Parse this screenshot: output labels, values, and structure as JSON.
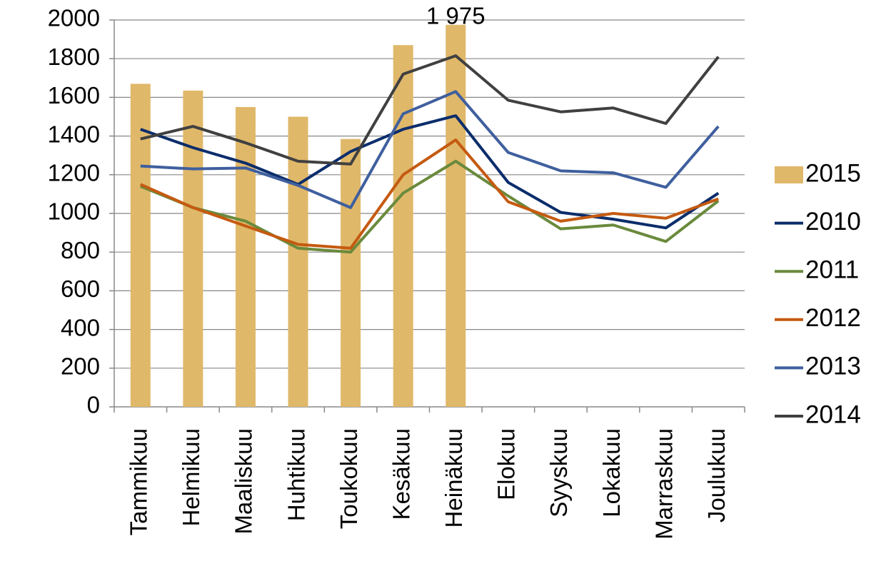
{
  "chart_data": {
    "type": "combo",
    "categories": [
      "Tammikuu",
      "Helmikuu",
      "Maaliskuu",
      "Huhtikuu",
      "Toukokuu",
      "Kesäkuu",
      "Heinäkuu",
      "Elokuu",
      "Syyskuu",
      "Lokakuu",
      "Marraskuu",
      "Joulukuu"
    ],
    "series": [
      {
        "name": "2015",
        "type": "bar",
        "color": "#e0b86a",
        "values": [
          1670,
          1635,
          1550,
          1500,
          1385,
          1870,
          1975,
          null,
          null,
          null,
          null,
          null
        ],
        "value_labels": [
          null,
          null,
          null,
          null,
          null,
          null,
          "1 975",
          null,
          null,
          null,
          null,
          null
        ]
      },
      {
        "name": "2010",
        "type": "line",
        "color": "#0b2d6b",
        "values": [
          1435,
          1340,
          1260,
          1150,
          1320,
          1435,
          1505,
          1160,
          1005,
          970,
          925,
          1105
        ]
      },
      {
        "name": "2011",
        "type": "line",
        "color": "#6a8a3c",
        "values": [
          1140,
          1030,
          960,
          820,
          800,
          1105,
          1270,
          1090,
          920,
          940,
          855,
          1065
        ]
      },
      {
        "name": "2012",
        "type": "line",
        "color": "#c55a11",
        "values": [
          1150,
          1030,
          935,
          840,
          820,
          1200,
          1380,
          1060,
          960,
          1000,
          975,
          1075
        ]
      },
      {
        "name": "2013",
        "type": "line",
        "color": "#3f5f9e",
        "values": [
          1245,
          1230,
          1235,
          1145,
          1030,
          1515,
          1630,
          1315,
          1220,
          1210,
          1135,
          1450
        ]
      },
      {
        "name": "2014",
        "type": "line",
        "color": "#404040",
        "values": [
          1385,
          1450,
          1365,
          1270,
          1255,
          1720,
          1815,
          1585,
          1525,
          1545,
          1465,
          1810
        ]
      }
    ],
    "ylim": [
      0,
      2000
    ],
    "yticks": [
      0,
      200,
      400,
      600,
      800,
      1000,
      1200,
      1400,
      1600,
      1800,
      2000
    ],
    "grid": true,
    "legend": "right"
  }
}
